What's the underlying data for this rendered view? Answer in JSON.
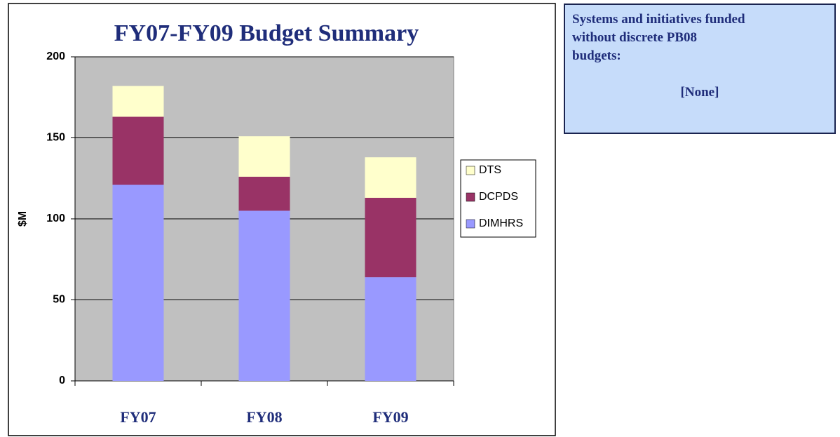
{
  "chart_data": {
    "type": "stacked_bar",
    "title": "FY07-FY09 Budget Summary",
    "y_label": "$M",
    "categories": [
      "FY07",
      "FY08",
      "FY09"
    ],
    "series": [
      {
        "name": "DIMHRS",
        "color": "#9999ff",
        "values": [
          121,
          105,
          64
        ]
      },
      {
        "name": "DCPDS",
        "color": "#993366",
        "values": [
          42,
          21,
          49
        ]
      },
      {
        "name": "DTS",
        "color": "#ffffcc",
        "values": [
          19,
          25,
          25
        ]
      }
    ],
    "ylim": [
      0,
      200
    ],
    "yticks": [
      0,
      50,
      100,
      150,
      200
    ],
    "grid": true,
    "legend": "right"
  },
  "note": {
    "lines": [
      "Systems and initiatives funded",
      "without discrete PB08",
      "budgets:"
    ],
    "value": "[None]"
  }
}
